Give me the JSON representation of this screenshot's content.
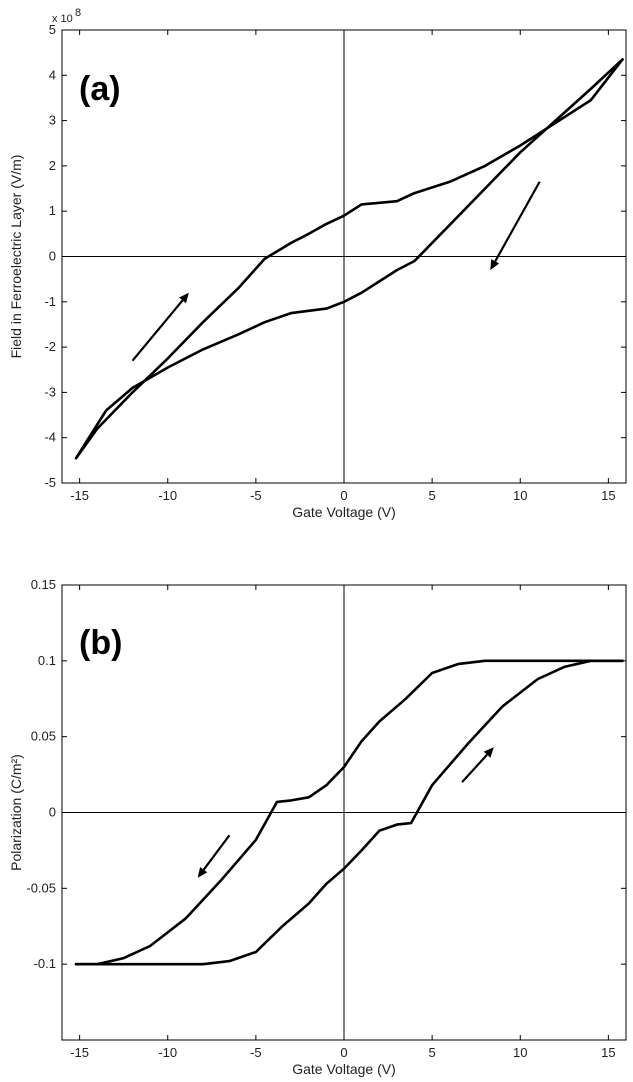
{
  "chart_data": [
    {
      "type": "line",
      "panel_label": "(a)",
      "xlabel": "Gate Voltage (V)",
      "ylabel": "Field in Ferroelectric Layer (V/m)",
      "y_exponent_label": "x 10",
      "y_exponent_power": "8",
      "xlim": [
        -16,
        16
      ],
      "ylim": [
        -5,
        5
      ],
      "xticks": [
        -15,
        -10,
        -5,
        0,
        5,
        10,
        15
      ],
      "yticks": [
        -5,
        -4,
        -3,
        -2,
        -1,
        0,
        1,
        2,
        3,
        4,
        5
      ],
      "series": [
        {
          "x": [
            -15.2,
            -13.5,
            -12,
            -10,
            -8,
            -6,
            -4.5,
            -3,
            -1,
            0,
            1,
            2,
            3,
            4,
            6,
            8,
            10,
            12,
            14,
            15.8
          ],
          "y": [
            -4.45,
            -3.4,
            -2.9,
            -2.45,
            -2.05,
            -1.72,
            -1.45,
            -1.25,
            -1.15,
            -1.0,
            -0.8,
            -0.55,
            -0.3,
            -0.1,
            0.7,
            1.5,
            2.3,
            3.0,
            3.7,
            4.35
          ]
        },
        {
          "x": [
            15.8,
            14,
            12,
            10,
            8,
            6,
            4,
            3,
            1,
            0,
            -1,
            -2,
            -3,
            -4.5,
            -6,
            -8,
            -10,
            -12,
            -14,
            -15.2
          ],
          "y": [
            4.35,
            3.45,
            2.95,
            2.45,
            2.0,
            1.65,
            1.4,
            1.22,
            1.15,
            0.9,
            0.72,
            0.5,
            0.3,
            -0.05,
            -0.7,
            -1.45,
            -2.25,
            -3.0,
            -3.8,
            -4.45
          ]
        }
      ],
      "arrows": [
        {
          "from": [
            -12,
            -2.3
          ],
          "to": [
            -8.8,
            -0.8
          ]
        },
        {
          "from": [
            11.1,
            1.65
          ],
          "to": [
            8.3,
            -0.3
          ]
        }
      ]
    },
    {
      "type": "line",
      "panel_label": "(b)",
      "xlabel": "Gate Voltage (V)",
      "ylabel": "Polarization (C/m²)",
      "xlim": [
        -16,
        16
      ],
      "ylim": [
        -0.15,
        0.15
      ],
      "xticks": [
        -15,
        -10,
        -5,
        0,
        5,
        10,
        15
      ],
      "yticks": [
        -0.1,
        -0.05,
        0,
        0.05,
        0.1,
        0.15
      ],
      "ytick_labels": [
        "-0.1",
        "-0.05",
        "0",
        "0.05",
        "0.1",
        "0.15"
      ],
      "series": [
        {
          "x": [
            -15.2,
            -12,
            -8,
            -6.5,
            -5,
            -3.5,
            -2,
            -1,
            0,
            1,
            2,
            3,
            3.8,
            5,
            7,
            9,
            11,
            12.5,
            14,
            15.8
          ],
          "y": [
            -0.1,
            -0.1,
            -0.1,
            -0.098,
            -0.092,
            -0.075,
            -0.06,
            -0.047,
            -0.037,
            -0.025,
            -0.012,
            -0.008,
            -0.007,
            0.018,
            0.045,
            0.07,
            0.088,
            0.096,
            0.1,
            0.1
          ]
        },
        {
          "x": [
            15.8,
            12,
            8,
            6.5,
            5,
            3.5,
            2,
            1,
            0,
            -1,
            -2,
            -3,
            -3.8,
            -5,
            -7,
            -9,
            -11,
            -12.5,
            -14,
            -15.2
          ],
          "y": [
            0.1,
            0.1,
            0.1,
            0.098,
            0.092,
            0.075,
            0.06,
            0.047,
            0.03,
            0.018,
            0.01,
            0.008,
            0.007,
            -0.018,
            -0.045,
            -0.07,
            -0.088,
            -0.096,
            -0.1,
            -0.1
          ]
        }
      ],
      "arrows": [
        {
          "from": [
            -6.5,
            -0.015
          ],
          "to": [
            -8.3,
            -0.043
          ]
        },
        {
          "from": [
            6.7,
            0.02
          ],
          "to": [
            8.5,
            0.043
          ]
        }
      ]
    }
  ]
}
